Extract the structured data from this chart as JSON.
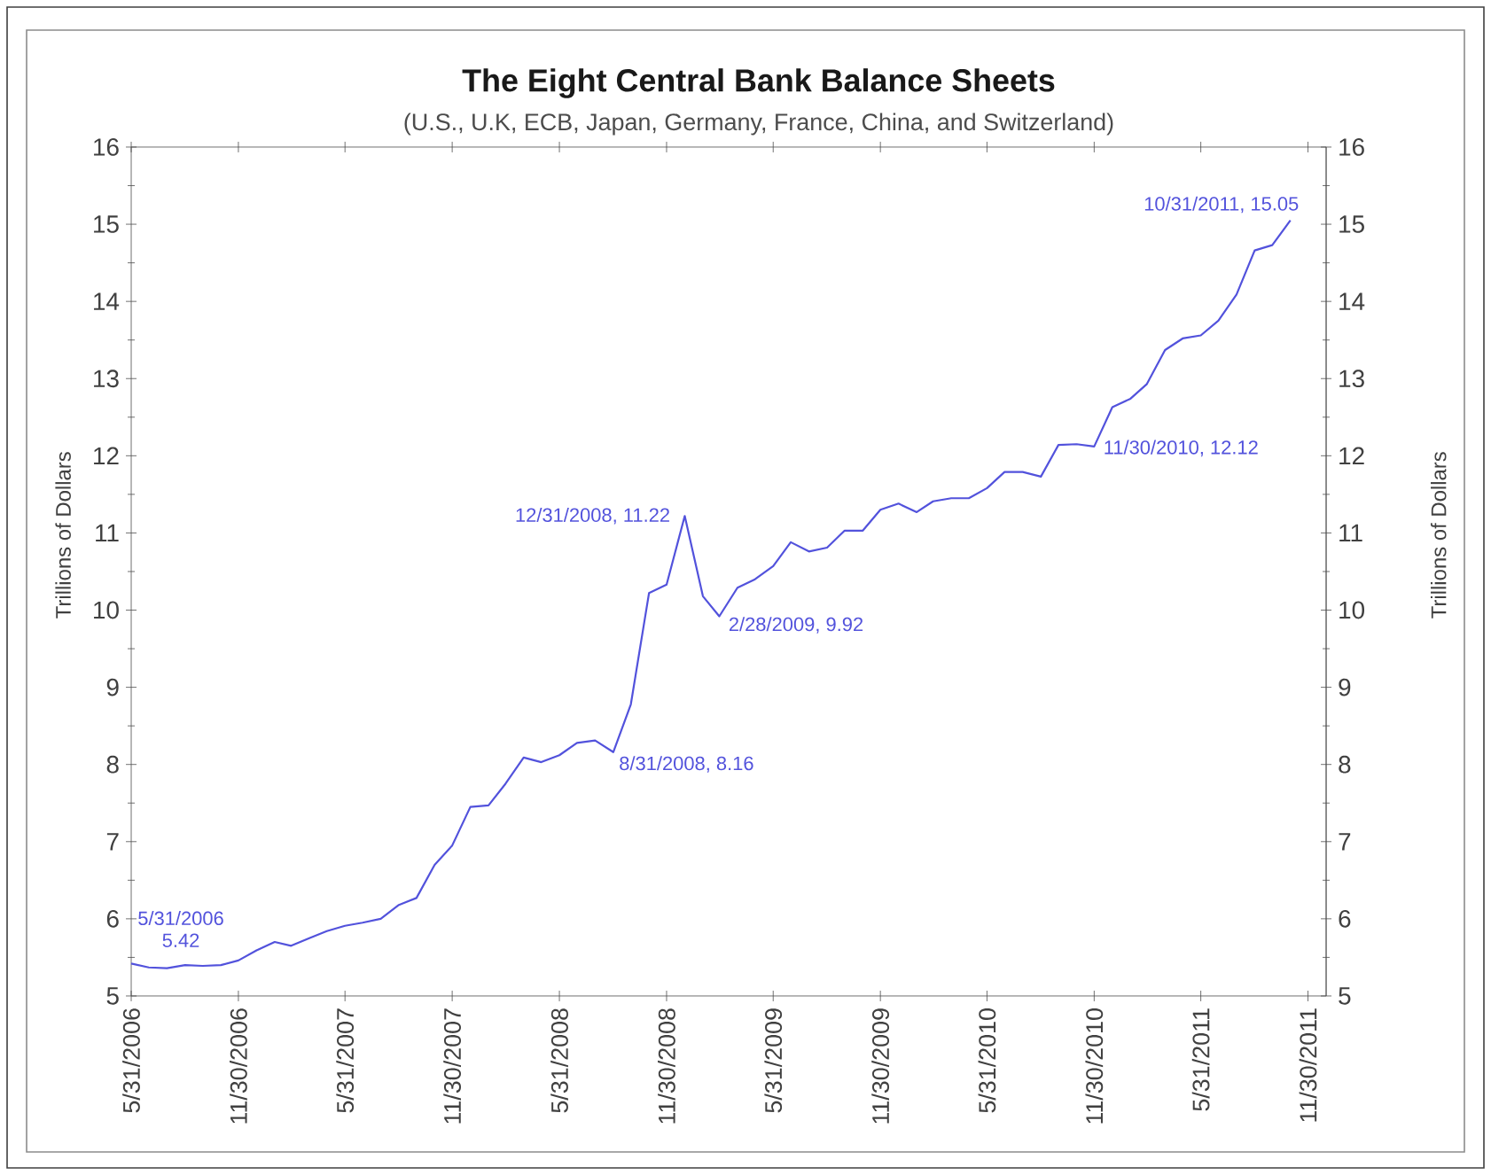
{
  "chart_data": {
    "type": "line",
    "title": "The Eight Central Bank Balance Sheets",
    "subtitle": "(U.S., U.K, ECB, Japan, Germany, France, China, and Switzerland)",
    "ylabel": "Trillions of Dollars",
    "y2label": "Trillions of Dollars",
    "x": [
      "2006-05-31",
      "2006-06-30",
      "2006-07-31",
      "2006-08-31",
      "2006-09-30",
      "2006-10-31",
      "2006-11-30",
      "2006-12-31",
      "2007-01-31",
      "2007-02-28",
      "2007-03-31",
      "2007-04-30",
      "2007-05-31",
      "2007-06-30",
      "2007-07-31",
      "2007-08-31",
      "2007-09-30",
      "2007-10-31",
      "2007-11-30",
      "2007-12-31",
      "2008-01-31",
      "2008-02-29",
      "2008-03-31",
      "2008-04-30",
      "2008-05-31",
      "2008-06-30",
      "2008-07-31",
      "2008-08-31",
      "2008-09-30",
      "2008-10-31",
      "2008-11-30",
      "2008-12-31",
      "2009-01-31",
      "2009-02-28",
      "2009-03-31",
      "2009-04-30",
      "2009-05-31",
      "2009-06-30",
      "2009-07-31",
      "2009-08-31",
      "2009-09-30",
      "2009-10-31",
      "2009-11-30",
      "2009-12-31",
      "2010-01-31",
      "2010-02-28",
      "2010-03-31",
      "2010-04-30",
      "2010-05-31",
      "2010-06-30",
      "2010-07-31",
      "2010-08-31",
      "2010-09-30",
      "2010-10-31",
      "2010-11-30",
      "2010-12-31",
      "2011-01-31",
      "2011-02-28",
      "2011-03-31",
      "2011-04-30",
      "2011-05-31",
      "2011-06-30",
      "2011-07-31",
      "2011-08-31",
      "2011-09-30",
      "2011-10-31"
    ],
    "series": [
      {
        "color": "#5252dc",
        "values": [
          5.42,
          5.37,
          5.36,
          5.4,
          5.39,
          5.4,
          5.46,
          5.59,
          5.7,
          5.65,
          5.75,
          5.84,
          5.91,
          5.95,
          6.0,
          6.18,
          6.27,
          6.7,
          6.95,
          7.45,
          7.47,
          7.75,
          8.09,
          8.03,
          8.12,
          8.28,
          8.31,
          8.16,
          8.78,
          10.22,
          10.33,
          11.22,
          10.18,
          9.92,
          10.29,
          10.4,
          10.57,
          10.88,
          10.76,
          10.81,
          11.03,
          11.03,
          11.3,
          11.38,
          11.27,
          11.41,
          11.45,
          11.45,
          11.58,
          11.79,
          11.79,
          11.73,
          12.14,
          12.15,
          12.12,
          12.63,
          12.74,
          12.93,
          13.37,
          13.52,
          13.56,
          13.75,
          14.09,
          14.66,
          14.73,
          15.05
        ]
      }
    ],
    "xlim": [
      "2006-05-31",
      "2011-12-31"
    ],
    "xticks": [
      {
        "value": "2006-05-31",
        "label": "5/31/2006"
      },
      {
        "value": "2006-11-30",
        "label": "11/30/2006"
      },
      {
        "value": "2007-05-31",
        "label": "5/31/2007"
      },
      {
        "value": "2007-11-30",
        "label": "11/30/2007"
      },
      {
        "value": "2008-05-31",
        "label": "5/31/2008"
      },
      {
        "value": "2008-11-30",
        "label": "11/30/2008"
      },
      {
        "value": "2009-05-31",
        "label": "5/31/2009"
      },
      {
        "value": "2009-11-30",
        "label": "11/30/2009"
      },
      {
        "value": "2010-05-31",
        "label": "5/31/2010"
      },
      {
        "value": "2010-11-30",
        "label": "11/30/2010"
      },
      {
        "value": "2011-05-31",
        "label": "5/31/2011"
      },
      {
        "value": "2011-11-30",
        "label": "11/30/2011"
      }
    ],
    "ylim": [
      5,
      16
    ],
    "yticks": [
      5,
      6,
      7,
      8,
      9,
      10,
      11,
      12,
      13,
      14,
      15,
      16
    ],
    "y2lim": [
      5,
      16
    ],
    "y2ticks": [
      5,
      6,
      7,
      8,
      9,
      10,
      11,
      12,
      13,
      14,
      15,
      16
    ],
    "annotations": [
      {
        "text": "5/31/2006 5.42",
        "x": "2006-05-31",
        "y": 5.42
      },
      {
        "text": "8/31/2008, 8.16",
        "x": "2008-08-31",
        "y": 8.16
      },
      {
        "text": "12/31/2008, 11.22",
        "x": "2008-12-31",
        "y": 11.22
      },
      {
        "text": "2/28/2009, 9.92",
        "x": "2009-02-28",
        "y": 9.92
      },
      {
        "text": "11/30/2010, 12.12",
        "x": "2010-11-30",
        "y": 12.12
      },
      {
        "text": "10/31/2011, 15.05",
        "x": "2011-10-31",
        "y": 15.05
      }
    ],
    "marker": "none",
    "line_style": "solid"
  }
}
